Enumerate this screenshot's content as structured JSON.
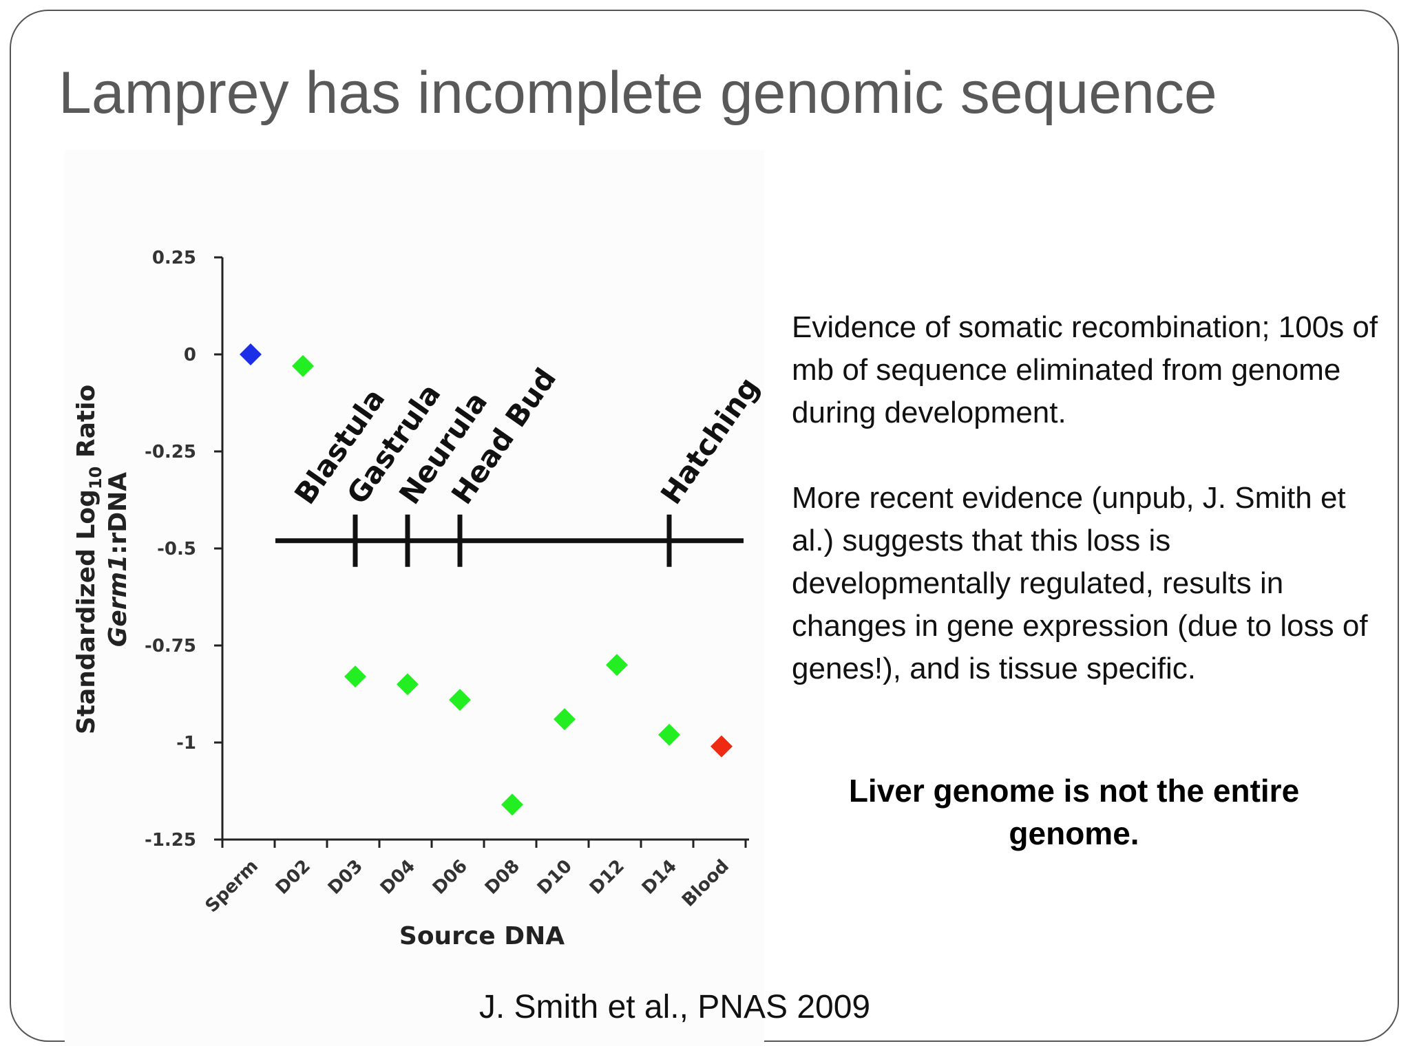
{
  "slide": {
    "title": "Lamprey has incomplete genomic sequence",
    "body_paragraphs": [
      "Evidence of somatic recombination; 100s of mb of sequence eliminated from genome during development.",
      "More recent evidence (unpub, J. Smith et al.) suggests that this loss is developmentally regulated, results in changes in gene expression (due to loss of genes!), and is tissue specific."
    ],
    "conclusion": "Liver genome is not the entire genome.",
    "citation": "J. Smith et al., PNAS 2009"
  },
  "chart_data": {
    "type": "scatter",
    "title": "",
    "xlabel": "Source DNA",
    "ylabel": {
      "prefix": "Standardized Log",
      "subscript": "10",
      "suffix": " Ratio",
      "line2_italic": "Germ1",
      "line2_rest": ":rDNA"
    },
    "categories": [
      "Sperm",
      "D02",
      "D03",
      "D04",
      "D06",
      "D08",
      "D10",
      "D12",
      "D14",
      "Blood"
    ],
    "values": [
      0.0,
      -0.03,
      -0.83,
      -0.85,
      -0.89,
      -1.16,
      -0.94,
      -0.8,
      -0.98,
      -1.01
    ],
    "point_colors": [
      "#1c2fe6",
      "#22ee22",
      "#22ee22",
      "#22ee22",
      "#22ee22",
      "#22ee22",
      "#22ee22",
      "#22ee22",
      "#22ee22",
      "#ee2a12"
    ],
    "marker": "diamond",
    "ylim": [
      -1.25,
      0.25
    ],
    "yticks": [
      0.25,
      0,
      -0.25,
      -0.5,
      -0.75,
      -1,
      -1.25
    ],
    "ytick_labels": [
      "0.25",
      "0",
      "-0.25",
      "-0.5",
      "-0.75",
      "-1",
      "-1.25"
    ],
    "grid": false,
    "legend": "none",
    "annotation_timeline": {
      "y": -0.48,
      "stages": [
        {
          "label": "Blastula",
          "at_category": "D03"
        },
        {
          "label": "Gastrula",
          "at_category": "D03"
        },
        {
          "label": "Neurula",
          "at_category": "D04"
        },
        {
          "label": "Head Bud",
          "at_category": "D06"
        },
        {
          "label": "Hatching",
          "at_category": "D14"
        }
      ]
    }
  }
}
